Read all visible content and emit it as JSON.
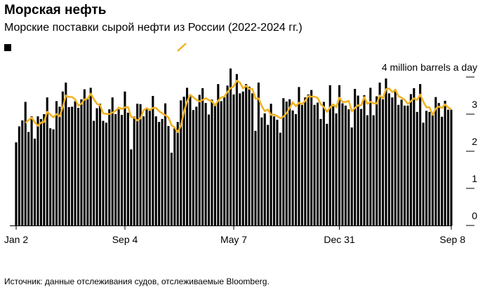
{
  "title": "Морская нефть",
  "subtitle": "Морские поставки сырой нефти из России (2022-2024 гг.)",
  "source": "Источник: данные отслеживания судов, отслеживаемые Bloomberg.",
  "chart_data": {
    "type": "bar",
    "title": "Морская нефть",
    "subtitle": "Морские поставки сырой нефти из России (2022-2024 гг.)",
    "unit_label": "4 million barrels a day",
    "frequency": "weekly",
    "x_start": "Jan 2",
    "x_ticks": [
      "Jan 2",
      "Sep 4",
      "May 7",
      "Dec 31",
      "Sep 8"
    ],
    "x_tick_week_index": [
      0,
      35,
      70,
      104,
      140
    ],
    "y_ticks": [
      0,
      1,
      2,
      3,
      4
    ],
    "y_tick_labels": [
      "0",
      "1",
      "2",
      "3",
      "4 million barrels a day"
    ],
    "ylim": [
      0,
      4
    ],
    "grid": false,
    "legend": {
      "placement": "top-left",
      "entries": [
        {
          "marker": "square",
          "color": "#000000"
        },
        {
          "marker": "line",
          "color": "#f0b323"
        }
      ]
    },
    "series": [
      {
        "type": "bar",
        "color": "#000000",
        "values": [
          2.24,
          2.67,
          2.83,
          3.33,
          2.52,
          2.94,
          2.34,
          2.94,
          2.87,
          3.0,
          3.45,
          2.62,
          2.59,
          3.35,
          3.2,
          3.61,
          3.85,
          3.19,
          3.2,
          3.35,
          3.17,
          3.4,
          3.67,
          3.42,
          3.71,
          2.82,
          3.16,
          3.28,
          2.82,
          2.77,
          3.13,
          3.45,
          3.0,
          3.13,
          2.98,
          3.61,
          3.04,
          2.05,
          2.94,
          3.28,
          3.27,
          2.94,
          3.15,
          3.09,
          3.49,
          2.94,
          2.79,
          2.87,
          3.29,
          2.68,
          1.96,
          2.62,
          2.79,
          3.37,
          3.47,
          3.71,
          3.53,
          3.11,
          3.2,
          3.52,
          3.7,
          3.3,
          2.99,
          3.39,
          3.26,
          3.81,
          3.35,
          3.46,
          3.77,
          4.23,
          3.53,
          4.08,
          3.56,
          3.61,
          3.81,
          3.74,
          3.56,
          2.55,
          3.85,
          2.91,
          3.02,
          2.71,
          3.28,
          2.94,
          2.85,
          2.5,
          3.43,
          3.34,
          3.4,
          3.1,
          3.0,
          3.73,
          3.25,
          3.45,
          3.53,
          3.65,
          3.25,
          3.31,
          2.87,
          3.33,
          2.74,
          3.78,
          3.21,
          3.02,
          3.78,
          3.29,
          3.23,
          3.13,
          2.64,
          3.68,
          3.5,
          3.14,
          3.51,
          2.97,
          3.71,
          2.97,
          3.48,
          3.85,
          3.4,
          3.96,
          3.56,
          3.45,
          3.67,
          3.25,
          3.39,
          3.23,
          3.23,
          3.54,
          3.7,
          3.06,
          3.81,
          2.77,
          3.09,
          3.06,
          2.99,
          3.46,
          3.3,
          2.93,
          3.36,
          3.12,
          3.12
        ]
      },
      {
        "type": "line",
        "color": "#f0b323",
        "rolling_mean_of_bars_weeks": 4
      }
    ]
  }
}
